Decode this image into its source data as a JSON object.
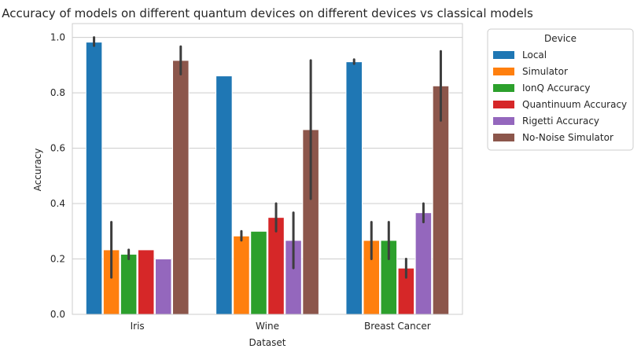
{
  "chart_data": {
    "type": "bar",
    "title": "Accuracy of models on different quantum devices on different devices vs classical models",
    "xlabel": "Dataset",
    "ylabel": "Accuracy",
    "ylim": [
      0,
      1.05
    ],
    "yticks": [
      "0.0",
      "0.2",
      "0.4",
      "0.6",
      "0.8",
      "1.0"
    ],
    "grid": "y",
    "legend": {
      "title": "Device",
      "placement": "outside-right"
    },
    "categories": [
      "Iris",
      "Wine",
      "Breast Cancer"
    ],
    "series": [
      {
        "name": "Local",
        "color": "#1f77b4",
        "values": [
          0.983,
          0.861,
          0.912
        ],
        "error": [
          [
            0.97,
            1.0
          ],
          null,
          [
            0.905,
            0.92
          ]
        ]
      },
      {
        "name": "Simulator",
        "color": "#ff7f0e",
        "values": [
          0.233,
          0.283,
          0.267
        ],
        "error": [
          [
            0.133,
            0.333
          ],
          [
            0.267,
            0.3
          ],
          [
            0.2,
            0.333
          ]
        ]
      },
      {
        "name": "IonQ Accuracy",
        "color": "#2ca02c",
        "values": [
          0.217,
          0.3,
          0.267
        ],
        "error": [
          [
            0.2,
            0.233
          ],
          null,
          [
            0.2,
            0.333
          ]
        ]
      },
      {
        "name": "Quantinuum Accuracy",
        "color": "#d62728",
        "values": [
          0.233,
          0.35,
          0.167
        ],
        "error": [
          null,
          [
            0.3,
            0.4
          ],
          [
            0.133,
            0.2
          ]
        ]
      },
      {
        "name": "Rigetti Accuracy",
        "color": "#9467bd",
        "values": [
          0.2,
          0.267,
          0.367
        ],
        "error": [
          null,
          [
            0.167,
            0.367
          ],
          [
            0.333,
            0.4
          ]
        ]
      },
      {
        "name": "No-Noise Simulator",
        "color": "#8c564b",
        "values": [
          0.917,
          0.667,
          0.825
        ],
        "error": [
          [
            0.867,
            0.967
          ],
          [
            0.417,
            0.917
          ],
          [
            0.7,
            0.95
          ]
        ]
      }
    ]
  }
}
